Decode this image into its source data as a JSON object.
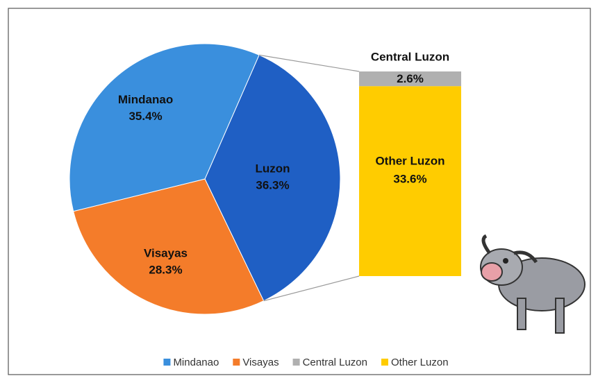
{
  "chart_data": {
    "type": "pie-of-bar",
    "pie": {
      "categories": [
        "Luzon",
        "Visayas",
        "Mindanao"
      ],
      "values": [
        36.3,
        28.3,
        35.4
      ],
      "value_labels": [
        "36.3%",
        "28.3%",
        "35.4%"
      ],
      "colors": [
        "#1f5fc4",
        "#f47c2a",
        "#3a8fdd"
      ]
    },
    "bar": {
      "categories": [
        "Central Luzon",
        "Other Luzon"
      ],
      "values": [
        2.6,
        33.6
      ],
      "value_labels": [
        "2.6%",
        "33.6%"
      ],
      "colors": [
        "#b0b0b0",
        "#ffcc00"
      ]
    },
    "legend": true
  }
}
